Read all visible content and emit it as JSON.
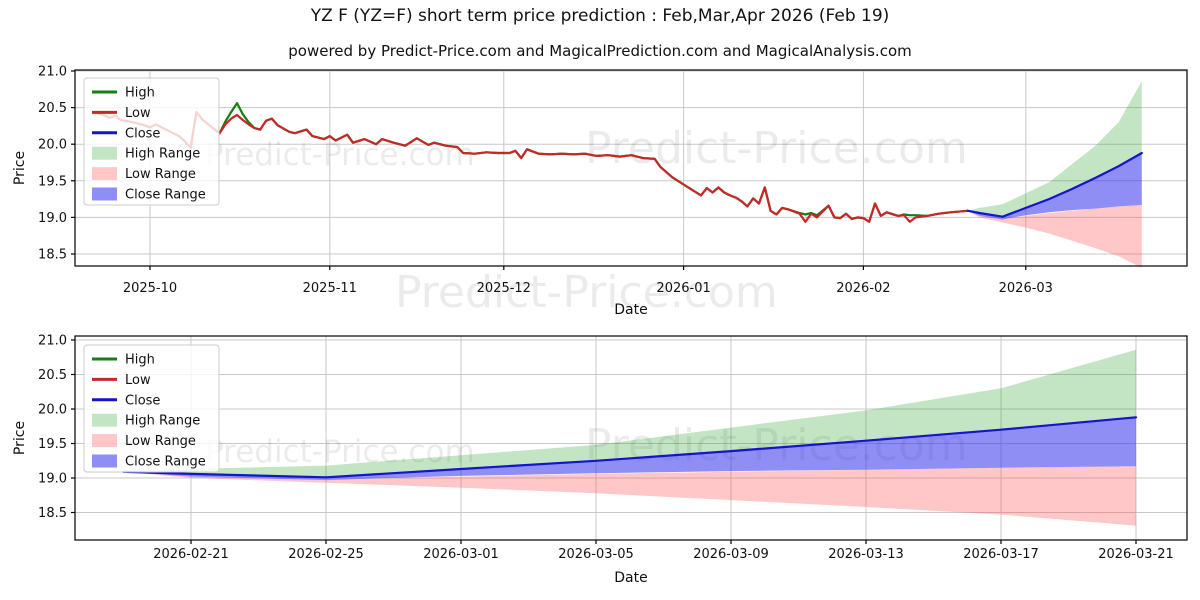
{
  "title": "YZ F (YZ=F) short term price prediction : Feb,Mar,Apr 2026 (Feb 19)",
  "subtitle": "powered by Predict-Price.com and MagicalPrediction.com and MagicalAnalysis.com",
  "watermark_text": "Predict-Price.com",
  "axis": {
    "x_label": "Date",
    "y_label": "Price"
  },
  "colors": {
    "high_line": "#128012",
    "low_line": "#c62828",
    "close_line": "#1414cc",
    "high_range": "rgba(44,160,44,0.28)",
    "low_range": "rgba(255,80,80,0.32)",
    "close_range": "rgba(50,50,235,0.55)",
    "grid": "#c8c8c8",
    "spine": "#000000",
    "tick_text": "#111111",
    "watermark": "rgba(0,0,0,0.08)",
    "legend_bg": "rgba(255,255,255,0.8)",
    "legend_border": "#cccccc"
  },
  "legend": [
    {
      "label": "High",
      "type": "line",
      "color": "#128012"
    },
    {
      "label": "Low",
      "type": "line",
      "color": "#c62828"
    },
    {
      "label": "Close",
      "type": "line",
      "color": "#1414cc"
    },
    {
      "label": "High Range",
      "type": "patch",
      "color": "rgba(44,160,44,0.28)"
    },
    {
      "label": "Low Range",
      "type": "patch",
      "color": "rgba(255,80,80,0.32)"
    },
    {
      "label": "Close Range",
      "type": "patch",
      "color": "rgba(50,50,235,0.55)"
    }
  ],
  "chart_data": {
    "type": "line",
    "ylabel": "Price",
    "xlabel": "Date",
    "y_ticks": [
      "21.0",
      "20.5",
      "20.0",
      "19.5",
      "19.0",
      "18.5"
    ],
    "y_tick_values": [
      21.0,
      20.5,
      20.0,
      19.5,
      19.0,
      18.5
    ],
    "top_chart": {
      "x_ticks": [
        {
          "t": 9,
          "label": "2025-10"
        },
        {
          "t": 40,
          "label": "2025-11"
        },
        {
          "t": 70,
          "label": "2025-12"
        },
        {
          "t": 101,
          "label": "2026-01"
        },
        {
          "t": 132,
          "label": "2026-02"
        },
        {
          "t": 160,
          "label": "2026-03"
        }
      ],
      "historical_start_date": "2025-09-22",
      "low": [
        [
          0,
          20.42
        ],
        [
          1,
          20.4
        ],
        [
          2,
          20.36
        ],
        [
          3,
          20.39
        ],
        [
          4,
          20.33
        ],
        [
          6,
          20.3
        ],
        [
          8,
          20.26
        ],
        [
          9,
          20.23
        ],
        [
          10,
          20.27
        ],
        [
          12,
          20.19
        ],
        [
          14,
          20.11
        ],
        [
          15,
          20.04
        ],
        [
          16,
          19.95
        ],
        [
          17,
          20.44
        ],
        [
          18,
          20.34
        ],
        [
          20,
          20.21
        ],
        [
          21,
          20.15
        ],
        [
          22,
          20.27
        ],
        [
          23,
          20.35
        ],
        [
          24,
          20.4
        ],
        [
          25,
          20.33
        ],
        [
          26,
          20.27
        ],
        [
          27,
          20.22
        ],
        [
          28,
          20.2
        ],
        [
          29,
          20.32
        ],
        [
          30,
          20.35
        ],
        [
          31,
          20.26
        ],
        [
          33,
          20.17
        ],
        [
          34,
          20.15
        ],
        [
          36,
          20.2
        ],
        [
          37,
          20.11
        ],
        [
          39,
          20.07
        ],
        [
          40,
          20.11
        ],
        [
          41,
          20.05
        ],
        [
          43,
          20.13
        ],
        [
          44,
          20.02
        ],
        [
          46,
          20.07
        ],
        [
          48,
          20.0
        ],
        [
          49,
          20.07
        ],
        [
          51,
          20.02
        ],
        [
          53,
          19.98
        ],
        [
          55,
          20.08
        ],
        [
          57,
          19.99
        ],
        [
          58,
          20.02
        ],
        [
          60,
          19.98
        ],
        [
          62,
          19.96
        ],
        [
          63,
          19.88
        ],
        [
          65,
          19.87
        ],
        [
          67,
          19.89
        ],
        [
          69,
          19.88
        ],
        [
          71,
          19.88
        ],
        [
          72,
          19.91
        ],
        [
          73,
          19.81
        ],
        [
          74,
          19.93
        ],
        [
          76,
          19.87
        ],
        [
          78,
          19.86
        ],
        [
          80,
          19.87
        ],
        [
          82,
          19.86
        ],
        [
          84,
          19.87
        ],
        [
          86,
          19.84
        ],
        [
          88,
          19.85
        ],
        [
          90,
          19.83
        ],
        [
          92,
          19.85
        ],
        [
          94,
          19.81
        ],
        [
          96,
          19.8
        ],
        [
          97,
          19.69
        ],
        [
          99,
          19.55
        ],
        [
          101,
          19.45
        ],
        [
          103,
          19.35
        ],
        [
          104,
          19.3
        ],
        [
          105,
          19.4
        ],
        [
          106,
          19.34
        ],
        [
          107,
          19.41
        ],
        [
          108,
          19.34
        ],
        [
          109,
          19.3
        ],
        [
          110,
          19.27
        ],
        [
          111,
          19.22
        ],
        [
          112,
          19.15
        ],
        [
          113,
          19.26
        ],
        [
          114,
          19.19
        ],
        [
          115,
          19.41
        ],
        [
          116,
          19.09
        ],
        [
          117,
          19.04
        ],
        [
          118,
          19.13
        ],
        [
          119,
          19.11
        ],
        [
          121,
          19.05
        ],
        [
          122,
          18.94
        ],
        [
          123,
          19.05
        ],
        [
          124,
          19.0
        ],
        [
          126,
          19.16
        ],
        [
          127,
          19.0
        ],
        [
          128,
          18.99
        ],
        [
          129,
          19.05
        ],
        [
          130,
          18.98
        ],
        [
          131,
          19.0
        ],
        [
          132,
          18.99
        ],
        [
          133,
          18.94
        ],
        [
          134,
          19.19
        ],
        [
          135,
          19.02
        ],
        [
          136,
          19.07
        ],
        [
          138,
          19.02
        ],
        [
          139,
          19.03
        ],
        [
          140,
          18.94
        ],
        [
          141,
          19.0
        ],
        [
          143,
          19.02
        ],
        [
          145,
          19.05
        ],
        [
          147,
          19.07
        ],
        [
          150,
          19.09
        ]
      ],
      "high_deviations": [
        [
          22,
          20.31
        ],
        [
          23,
          20.44
        ],
        [
          24,
          20.56
        ],
        [
          25,
          20.41
        ],
        [
          26,
          20.3
        ],
        [
          121,
          19.06
        ],
        [
          122,
          19.04
        ],
        [
          123,
          19.06
        ],
        [
          124,
          19.03
        ],
        [
          139,
          19.04
        ],
        [
          140,
          19.03
        ],
        [
          141,
          19.03
        ]
      ]
    },
    "bottom_chart": {
      "x_ticks": [
        {
          "t": 2,
          "label": "2026-02-21"
        },
        {
          "t": 6,
          "label": "2026-02-25"
        },
        {
          "t": 10,
          "label": "2026-03-01"
        },
        {
          "t": 14,
          "label": "2026-03-05"
        },
        {
          "t": 18,
          "label": "2026-03-09"
        },
        {
          "t": 22,
          "label": "2026-03-13"
        },
        {
          "t": 26,
          "label": "2026-03-17"
        },
        {
          "t": 30,
          "label": "2026-03-21"
        }
      ]
    },
    "forecast": {
      "start_date": "2026-02-19",
      "t": [
        0,
        2,
        6,
        10,
        14,
        18,
        22,
        26,
        30
      ],
      "close": [
        19.09,
        19.06,
        19.01,
        19.13,
        19.25,
        19.39,
        19.54,
        19.7,
        19.88
      ],
      "close_lower": [
        19.09,
        19.02,
        18.97,
        19.03,
        19.07,
        19.1,
        19.12,
        19.15,
        19.17
      ],
      "high_upper": [
        19.09,
        19.13,
        19.18,
        19.33,
        19.48,
        19.73,
        19.98,
        20.3,
        20.86
      ],
      "low_upper": [
        19.09,
        19.02,
        18.97,
        19.02,
        19.06,
        19.09,
        19.12,
        19.15,
        19.17
      ],
      "low_lower": [
        19.09,
        19.0,
        18.93,
        18.86,
        18.78,
        18.68,
        18.58,
        18.47,
        18.31
      ]
    }
  }
}
